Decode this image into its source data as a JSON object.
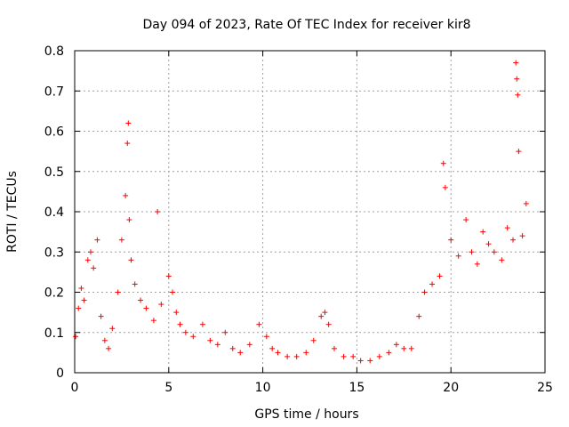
{
  "chart_data": {
    "type": "scatter",
    "title": "Day 094 of 2023, Rate Of TEC Index for receiver kir8",
    "xlabel": "GPS time / hours",
    "ylabel": "ROTI / TECUs",
    "xlim": [
      0,
      25
    ],
    "ylim": [
      0,
      0.8
    ],
    "x_ticks": [
      "0",
      "5",
      "10",
      "15",
      "20",
      "25"
    ],
    "y_ticks": [
      "0",
      "0.1",
      "0.2",
      "0.3",
      "0.4",
      "0.5",
      "0.6",
      "0.7",
      "0.8"
    ],
    "grid": true,
    "marker": "+",
    "marker_color": "#ff0000",
    "series": [
      {
        "name": "ROTI",
        "x": [
          0.05,
          0.2,
          0.35,
          0.5,
          0.7,
          0.85,
          1.0,
          1.2,
          1.4,
          1.6,
          1.8,
          2.0,
          2.3,
          2.5,
          2.7,
          2.8,
          2.85,
          2.9,
          3.0,
          3.2,
          3.5,
          3.8,
          4.2,
          4.4,
          4.6,
          5.0,
          5.2,
          5.4,
          5.6,
          5.9,
          6.3,
          6.8,
          7.2,
          7.6,
          8.0,
          8.4,
          8.8,
          9.3,
          9.8,
          10.2,
          10.5,
          10.8,
          11.3,
          11.8,
          12.3,
          12.7,
          13.1,
          13.3,
          13.5,
          13.8,
          14.3,
          14.8,
          15.2,
          15.7,
          16.2,
          16.7,
          17.1,
          17.5,
          17.9,
          18.3,
          18.6,
          19.0,
          19.4,
          19.6,
          19.7,
          20.0,
          20.4,
          20.8,
          21.1,
          21.4,
          21.7,
          22.0,
          22.3,
          22.7,
          23.0,
          23.3,
          23.45,
          23.5,
          23.55,
          23.6,
          23.8,
          24.0
        ],
        "y": [
          0.09,
          0.16,
          0.21,
          0.18,
          0.28,
          0.3,
          0.26,
          0.33,
          0.14,
          0.08,
          0.06,
          0.11,
          0.2,
          0.33,
          0.44,
          0.57,
          0.62,
          0.38,
          0.28,
          0.22,
          0.18,
          0.16,
          0.13,
          0.4,
          0.17,
          0.24,
          0.2,
          0.15,
          0.12,
          0.1,
          0.09,
          0.12,
          0.08,
          0.07,
          0.1,
          0.06,
          0.05,
          0.07,
          0.12,
          0.09,
          0.06,
          0.05,
          0.04,
          0.04,
          0.05,
          0.08,
          0.14,
          0.15,
          0.12,
          0.06,
          0.04,
          0.04,
          0.03,
          0.03,
          0.04,
          0.05,
          0.07,
          0.06,
          0.06,
          0.14,
          0.2,
          0.22,
          0.24,
          0.52,
          0.46,
          0.33,
          0.29,
          0.38,
          0.3,
          0.27,
          0.35,
          0.32,
          0.3,
          0.28,
          0.36,
          0.33,
          0.77,
          0.73,
          0.69,
          0.55,
          0.34,
          0.42
        ]
      }
    ]
  }
}
